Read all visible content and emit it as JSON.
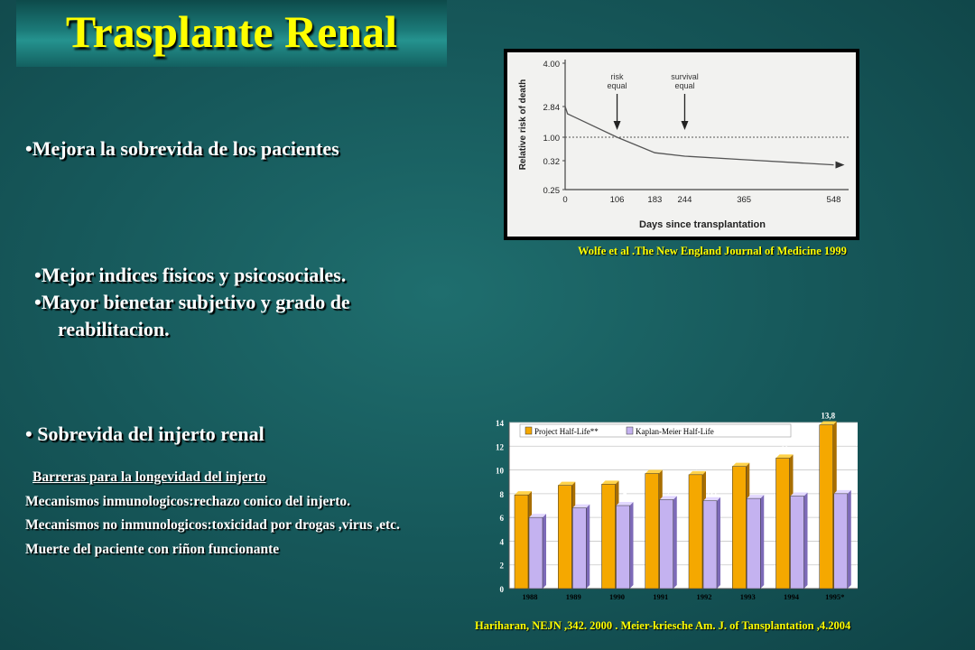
{
  "slide": {
    "title": "Trasplante Renal",
    "bullet1": "•Mejora la sobrevida de los pacientes",
    "bullet2_line1": "•Mejor indices fisicos y psicosociales.",
    "bullet2_line2": "•Mayor bienetar subjetivo y grado de",
    "bullet2_line3": "reabilitacion.",
    "bullet3": "• Sobrevida del injerto renal",
    "barriers_heading": "Barreras para la longevidad del injerto",
    "barriers": [
      "Mecanismos inmunologicos:rechazo conico del injerto.",
      "Mecanismos no inmunologicos:toxicidad por drogas ,virus ,etc.",
      "Muerte del paciente con riñon funcionante"
    ],
    "citation1": "Wolfe et al .The New England Journal of Medicine 1999",
    "citation2": "Hariharan, NEJN ,342. 2000 . Meier-kriesche  Am. J. of Tansplantation ,4.2004"
  },
  "chart_data": [
    {
      "type": "line",
      "ylabel": "Relative risk of death",
      "xlabel": "Days since transplantation",
      "yticks": [
        "4.00",
        "2.84",
        "1.00",
        "0.32",
        "0.25"
      ],
      "xticks": [
        "0",
        "106",
        "183",
        "244",
        "365",
        "548"
      ],
      "annotations": [
        {
          "text_lines": [
            "risk",
            "equal"
          ],
          "x": 106
        },
        {
          "text_lines": [
            "survival",
            "equal"
          ],
          "x": 244
        }
      ],
      "reference_line": {
        "y": "1.00",
        "style": "dotted"
      },
      "series": [
        {
          "x": [
            0,
            5,
            106,
            183,
            244,
            365,
            548
          ],
          "y": [
            "2.84",
            2.4,
            "1.00",
            0.55,
            0.45,
            0.35,
            0.31
          ]
        }
      ]
    },
    {
      "type": "bar",
      "categories": [
        "1988",
        "1989",
        "1990",
        "1991",
        "1992",
        "1993",
        "1994",
        "1995*"
      ],
      "series": [
        {
          "name": "Project Half-Life**",
          "color": "#f5a800",
          "values": [
            7.9,
            8.7,
            8.8,
            9.7,
            9.6,
            10.3,
            11,
            13.8
          ],
          "labels": [
            "7,9",
            "8,7",
            "8,8",
            "9,7",
            "9,6",
            "10,3",
            "11",
            "13,8"
          ]
        },
        {
          "name": "Kaplan-Meier Half-Life",
          "color": "#c4b2f0",
          "values": [
            6,
            6.8,
            7,
            7.5,
            7.4,
            7.6,
            7.8,
            8
          ],
          "labels": [
            "6",
            "6,8",
            "7",
            "7,5",
            "7,4",
            "7,6",
            "7,8",
            "8"
          ]
        }
      ],
      "ylim": [
        0,
        14
      ],
      "yticks": [
        "0",
        "2",
        "4",
        "6",
        "8",
        "10",
        "12",
        "14"
      ]
    }
  ]
}
